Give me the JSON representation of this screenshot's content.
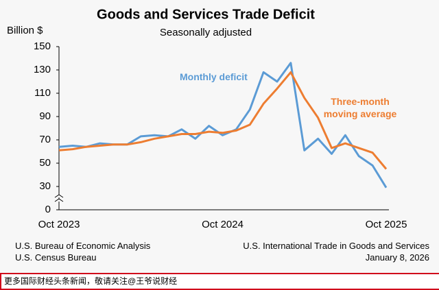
{
  "chart_data": {
    "type": "line",
    "title": "Goods and Services Trade Deficit",
    "subtitle": "Seasonally adjusted",
    "y_label": "Billion $",
    "categories": [
      "Oct 2023",
      null,
      null,
      null,
      null,
      null,
      null,
      null,
      null,
      null,
      null,
      null,
      "Oct 2024",
      null,
      null,
      null,
      null,
      null,
      null,
      null,
      null,
      null,
      null,
      null,
      "Oct 2025"
    ],
    "series": [
      {
        "name": "Monthly deficit",
        "color": "#5b9bd5",
        "values": [
          64,
          65,
          64,
          67,
          66,
          66,
          73,
          74,
          73,
          79,
          71,
          82,
          74,
          79,
          96,
          128,
          120,
          136,
          61,
          71,
          58,
          74,
          56,
          48,
          29
        ]
      },
      {
        "name": "Three-month moving average",
        "color": "#ed7d31",
        "values": [
          61,
          62,
          64,
          65,
          66,
          66,
          68,
          71,
          73,
          75,
          75,
          77,
          76,
          78,
          83,
          101,
          114,
          128,
          106,
          89,
          63,
          67,
          63,
          59,
          45
        ]
      }
    ],
    "ylim": [
      0,
      150
    ],
    "yticks": [
      0,
      30,
      50,
      70,
      90,
      110,
      130,
      150
    ],
    "axis_break": true,
    "grid": false
  },
  "footer": {
    "left": [
      "U.S. Bureau of Economic Analysis",
      "U.S. Census Bureau"
    ],
    "right": [
      "U.S. International Trade in Goods and Services",
      "January 8, 2026"
    ]
  },
  "banner": "更多国际财经头条新闻，敬请关注@王爷说财经"
}
